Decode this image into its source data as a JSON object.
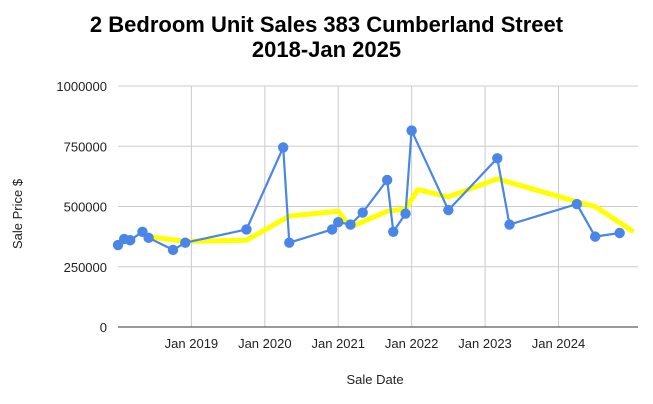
{
  "chart_data": {
    "type": "line",
    "title_line1": "2 Bedroom Unit Sales 383 Cumberland Street",
    "title_line2": "2018-Jan 2025",
    "xlabel": "Sale Date",
    "ylabel": "Sale Price $",
    "ylim": [
      0,
      1000000
    ],
    "y_ticks": [
      "0",
      "250000",
      "500000",
      "750000",
      "1000000"
    ],
    "x_ticks": [
      "Jan 2019",
      "Jan 2020",
      "Jan 2021",
      "Jan 2022",
      "Jan 2023",
      "Jan 2024"
    ],
    "grid": true,
    "legend": "none",
    "series": [
      {
        "color": "#4a86e8",
        "marker": "circle",
        "points": [
          {
            "x": "2018-01",
            "y": 340000
          },
          {
            "x": "2018-02",
            "y": 365000
          },
          {
            "x": "2018-03",
            "y": 360000
          },
          {
            "x": "2018-05",
            "y": 395000
          },
          {
            "x": "2018-06",
            "y": 370000
          },
          {
            "x": "2018-10",
            "y": 320000
          },
          {
            "x": "2018-12",
            "y": 350000
          },
          {
            "x": "2019-10",
            "y": 405000
          },
          {
            "x": "2020-04",
            "y": 745000
          },
          {
            "x": "2020-05",
            "y": 350000
          },
          {
            "x": "2020-12",
            "y": 405000
          },
          {
            "x": "2021-01",
            "y": 435000
          },
          {
            "x": "2021-03",
            "y": 425000
          },
          {
            "x": "2021-05",
            "y": 475000
          },
          {
            "x": "2021-09",
            "y": 610000
          },
          {
            "x": "2021-10",
            "y": 395000
          },
          {
            "x": "2021-12",
            "y": 470000
          },
          {
            "x": "2022-01",
            "y": 815000
          },
          {
            "x": "2022-07",
            "y": 485000
          },
          {
            "x": "2023-03",
            "y": 700000
          },
          {
            "x": "2023-05",
            "y": 425000
          },
          {
            "x": "2024-04",
            "y": 510000
          },
          {
            "x": "2024-07",
            "y": 375000
          },
          {
            "x": "2024-11",
            "y": 390000
          }
        ]
      },
      {
        "color": "#ffff00",
        "marker": "none",
        "points": [
          {
            "x": "2018-06",
            "y": 375000
          },
          {
            "x": "2018-12",
            "y": 355000
          },
          {
            "x": "2019-10",
            "y": 360000
          },
          {
            "x": "2020-05",
            "y": 460000
          },
          {
            "x": "2021-01",
            "y": 480000
          },
          {
            "x": "2021-03",
            "y": 415000
          },
          {
            "x": "2021-09",
            "y": 480000
          },
          {
            "x": "2021-12",
            "y": 490000
          },
          {
            "x": "2022-02",
            "y": 570000
          },
          {
            "x": "2022-07",
            "y": 540000
          },
          {
            "x": "2023-03",
            "y": 615000
          },
          {
            "x": "2024-04",
            "y": 520000
          },
          {
            "x": "2024-07",
            "y": 500000
          },
          {
            "x": "2025-01",
            "y": 400000
          }
        ]
      }
    ]
  }
}
